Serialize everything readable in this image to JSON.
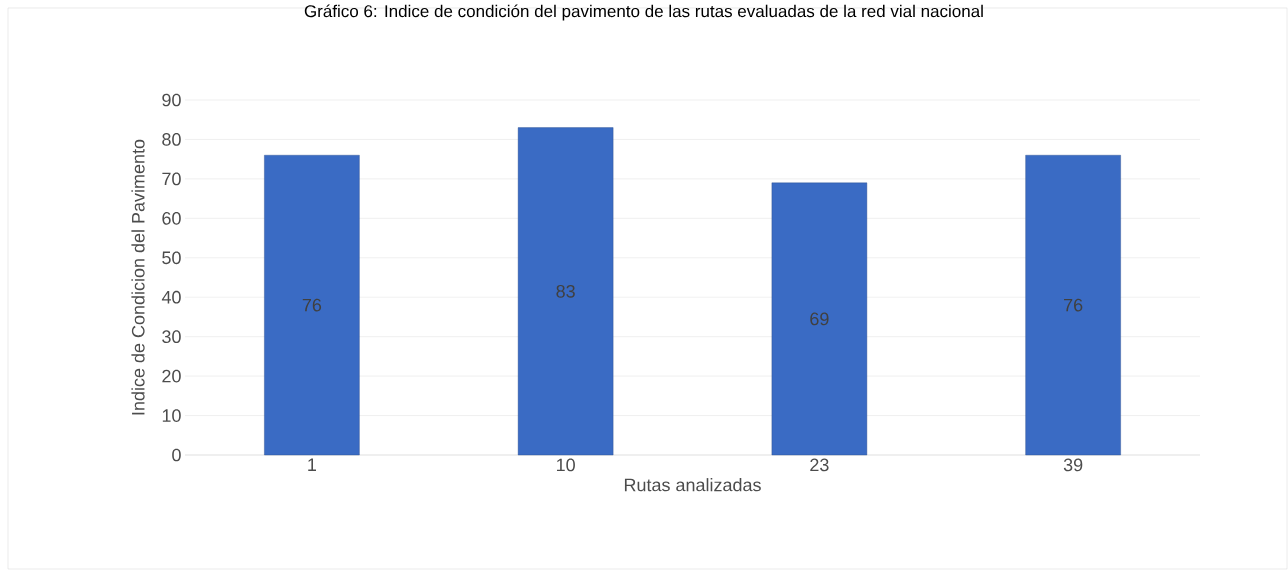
{
  "chart_data": {
    "type": "bar",
    "title": "Gráfico 6: Indice de condición del pavimento de las rutas evaluadas de la red vial nacional",
    "xlabel": "Rutas analizadas",
    "ylabel": "Indice de Condicion del Pavimento",
    "categories": [
      "1",
      "10",
      "23",
      "39"
    ],
    "values": [
      76,
      83,
      69,
      76
    ],
    "color": "#3a6bc4",
    "ylim": [
      0,
      90
    ],
    "yticks": [
      0,
      10,
      20,
      30,
      40,
      50,
      60,
      70,
      80,
      90
    ],
    "grid": "y",
    "data_labels": true
  }
}
